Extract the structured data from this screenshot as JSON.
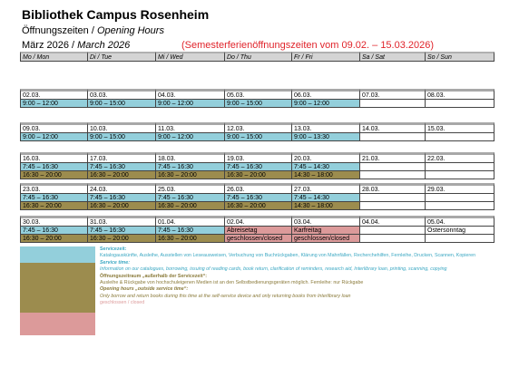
{
  "header": {
    "title": "Bibliothek Campus Rosenheim",
    "subtitle_de": "Öffnungszeiten / ",
    "subtitle_en": "Opening Hours",
    "month_de": "März 2026 / ",
    "month_en": "March 2026",
    "note": "(Semesterferienöffnungszeiten vom 09.02. – 15.03.2026)"
  },
  "table": {
    "columns": [
      "Mo / Mon",
      "Di / Tue",
      "Mi / Wed",
      "Do / Thu",
      "Fr / Fri",
      "Sa / Sat",
      "So / Sun"
    ],
    "weeks": [
      {
        "dates": [
          "02.03.",
          "03.03.",
          "04.03.",
          "05.03.",
          "06.03.",
          "07.03.",
          "08.03."
        ],
        "rows": [
          {
            "cells": [
              "9:00 – 12:00",
              "9:00 – 15:00",
              "9:00 – 12:00",
              "9:00 – 15:00",
              "9:00 – 12:00",
              null,
              null
            ],
            "colors": [
              "#93cfdb",
              "#93cfdb",
              "#93cfdb",
              "#93cfdb",
              "#93cfdb",
              null,
              null
            ]
          }
        ]
      },
      {
        "dates": [
          "09.03.",
          "10.03.",
          "11.03.",
          "12.03.",
          "13.03.",
          "14.03.",
          "15.03."
        ],
        "rows": [
          {
            "cells": [
              "9:00 – 12:00",
              "9:00 – 15:00",
              "9:00 – 12:00",
              "9:00 – 15:00",
              "9:00 – 13:30",
              null,
              null
            ],
            "colors": [
              "#93cfdb",
              "#93cfdb",
              "#93cfdb",
              "#93cfdb",
              "#93cfdb",
              null,
              null
            ]
          }
        ]
      },
      {
        "dates": [
          "16.03.",
          "17.03.",
          "18.03.",
          "19.03.",
          "20.03.",
          "21.03.",
          "22.03."
        ],
        "rows": [
          {
            "cells": [
              "7:45 – 16:30",
              "7:45 – 16:30",
              "7:45 – 16:30",
              "7:45 – 16:30",
              "7:45 – 14:30",
              null,
              null
            ],
            "colors": [
              "#93cfdb",
              "#93cfdb",
              "#93cfdb",
              "#93cfdb",
              "#93cfdb",
              null,
              null
            ]
          },
          {
            "cells": [
              "16:30 – 20:00",
              "16:30 – 20:00",
              "16:30 – 20:00",
              "16:30 – 20:00",
              "14:30 – 18:00",
              null,
              null
            ],
            "colors": [
              "#9c8c4e",
              "#9c8c4e",
              "#9c8c4e",
              "#9c8c4e",
              "#9c8c4e",
              null,
              null
            ]
          }
        ]
      },
      {
        "dates": [
          "23.03.",
          "24.03.",
          "25.03.",
          "26.03.",
          "27.03.",
          "28.03.",
          "29.03."
        ],
        "rows": [
          {
            "cells": [
              "7:45 – 16:30",
              "7:45 – 16:30",
              "7:45 – 16:30",
              "7:45 – 16:30",
              "7:45 – 14:30",
              null,
              null
            ],
            "colors": [
              "#93cfdb",
              "#93cfdb",
              "#93cfdb",
              "#93cfdb",
              "#93cfdb",
              null,
              null
            ]
          },
          {
            "cells": [
              "16:30 – 20:00",
              "16:30 – 20:00",
              "16:30 – 20:00",
              "16:30 – 20:00",
              "14:30 – 18:00",
              null,
              null
            ],
            "colors": [
              "#9c8c4e",
              "#9c8c4e",
              "#9c8c4e",
              "#9c8c4e",
              "#9c8c4e",
              null,
              null
            ]
          }
        ]
      },
      {
        "dates": [
          "30.03.",
          "31.03.",
          "01.04.",
          "02.04.",
          "03.04.",
          "04.04.",
          "05.04."
        ],
        "rows": [
          {
            "cells": [
              "7:45 – 16:30",
              "7:45 – 16:30",
              "7:45 – 16:30",
              "Abreisetag",
              "Karfreitag",
              null,
              "Ostersonntag"
            ],
            "colors": [
              "#93cfdb",
              "#93cfdb",
              "#93cfdb",
              "#dc9a9a",
              "#dc9a9a",
              null,
              null
            ]
          },
          {
            "cells": [
              "16:30 – 20:00",
              "16:30 – 20:00",
              "16:30 – 20:00",
              "geschlossen/closed",
              "geschlossen/closed",
              null,
              null
            ],
            "colors": [
              "#9c8c4e",
              "#9c8c4e",
              "#9c8c4e",
              "#dc9a9a",
              "#dc9a9a",
              null,
              null
            ]
          }
        ]
      }
    ]
  },
  "legend": {
    "service_title": "Servicezeit:",
    "service_text": "Katalogauskünfte, Ausleihe, Ausstellen von Leseausweisen, Verbuchung von Buchrückgaben, Klärung von Mahnfällen, Recherchehilfen, Fernleihe, Drucken, Scannen, Kopieren",
    "service_title_en": "Service time:",
    "service_text_en": "Information on our catalogues, borrowing, issuing of reading cards, book return, clarification of reminders, research aid, Interlibrary loan, printing, scanning, copying",
    "outside_title": "Öffnungszeitraum „außerhalb der Servicezeit“:",
    "outside_text": "Ausleihe & Rückgabe von hochschuleigenen Medien ist an den Selbstbedienungsgeräten möglich. Fernleihe: nur Rückgabe",
    "outside_title_en": "Opening hours „outside service time“:",
    "outside_text_en": "Only borrow and return books during this time at the self-service device and only returning books from Interlibrary loan",
    "closed": "geschlossen / closed"
  }
}
